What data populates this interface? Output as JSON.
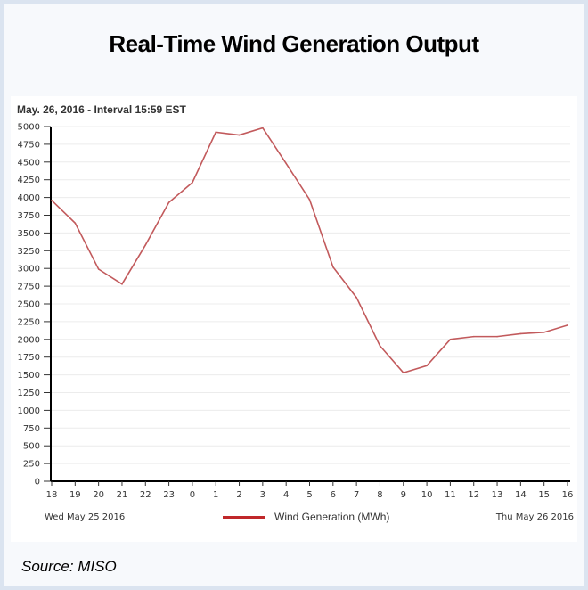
{
  "title": "Real-Time Wind Generation Output",
  "source": "Source: MISO",
  "chart_data": {
    "type": "line",
    "subtitle": "May. 26, 2016 - Interval 15:59 EST",
    "x": [
      "18",
      "19",
      "20",
      "21",
      "22",
      "23",
      "0",
      "1",
      "2",
      "3",
      "4",
      "5",
      "6",
      "7",
      "8",
      "9",
      "10",
      "11",
      "12",
      "13",
      "14",
      "15",
      "16"
    ],
    "series": [
      {
        "name": "Wind Generation (MWh)",
        "color": "#c0282a",
        "values": [
          3960,
          3640,
          2990,
          2780,
          3330,
          3930,
          4210,
          4920,
          4880,
          4980,
          4480,
          3970,
          3020,
          2590,
          1910,
          1530,
          1630,
          2000,
          2040,
          2040,
          2080,
          2100,
          2200
        ]
      }
    ],
    "yticks": [
      0,
      250,
      500,
      750,
      1000,
      1250,
      1500,
      1750,
      2000,
      2250,
      2500,
      2750,
      3000,
      3250,
      3500,
      3750,
      4000,
      4250,
      4500,
      4750,
      5000
    ],
    "ylim": [
      0,
      5000
    ],
    "start_date": "Wed May 25 2016",
    "end_date": "Thu May 26 2016",
    "grid": true,
    "legend": "bottom-center"
  }
}
